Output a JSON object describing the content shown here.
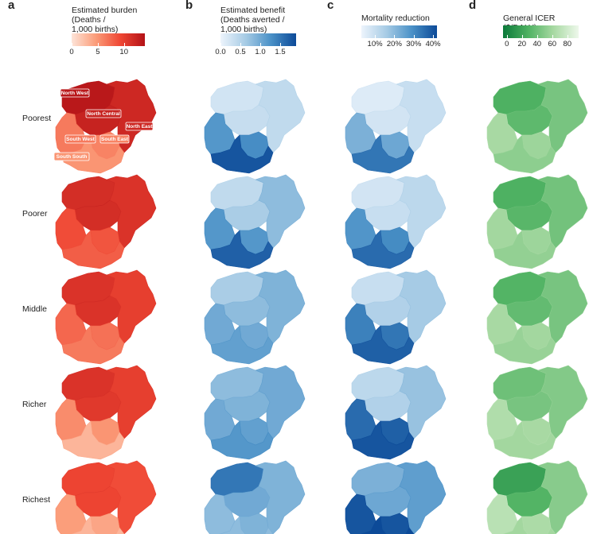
{
  "panels": [
    {
      "letter": "a",
      "legend_title": "Estimated burden\n(Deaths /\n1,000 births)",
      "ticks": [
        "0",
        "5",
        "10"
      ],
      "tick_values": [
        0,
        5,
        10
      ],
      "range": [
        0,
        14
      ],
      "colors": [
        "#fde4d8",
        "#fb9b78",
        "#ef4633",
        "#b31217"
      ]
    },
    {
      "letter": "b",
      "legend_title": "Estimated benefit\n(Deaths averted /\n1,000 births)",
      "ticks": [
        "0.0",
        "0.5",
        "1.0",
        "1.5"
      ],
      "tick_values": [
        0,
        0.5,
        1.0,
        1.5
      ],
      "range": [
        0,
        1.9
      ],
      "colors": [
        "#edf4fc",
        "#a6cbe5",
        "#4a91c7",
        "#0c4a98"
      ]
    },
    {
      "letter": "c",
      "legend_title": "Mortality reduction",
      "ticks": [
        "10%",
        "20%",
        "30%",
        "40%"
      ],
      "tick_values": [
        10,
        20,
        30,
        40
      ],
      "range": [
        3,
        42
      ],
      "colors": [
        "#edf4fc",
        "#a6cbe5",
        "#4a91c7",
        "#0c4a98"
      ]
    },
    {
      "letter": "d",
      "legend_title": "General ICER ($/DALY)",
      "ticks": [
        "0",
        "20",
        "40",
        "60",
        "80"
      ],
      "tick_values": [
        0,
        20,
        40,
        60,
        80
      ],
      "range": [
        -5,
        95
      ],
      "colors": [
        "#0b7a3a",
        "#4fb262",
        "#a7d9a2",
        "#eef8eb"
      ]
    }
  ],
  "rows": [
    "Poorest",
    "Poorer",
    "Middle",
    "Richer",
    "Richest"
  ],
  "region_labels": [
    "North West",
    "North Central",
    "North East",
    "South West",
    "South East",
    "South South"
  ],
  "map_values": [
    [
      [
        13.5,
        12.5,
        12.0,
        6.5,
        6.0,
        5.0
      ],
      [
        11.5,
        11.5,
        11.0,
        9.0,
        8.5,
        8.0
      ],
      [
        11.0,
        11.0,
        10.0,
        7.5,
        7.0,
        6.5
      ],
      [
        11.0,
        10.5,
        10.0,
        5.5,
        5.0,
        3.0
      ],
      [
        9.5,
        9.5,
        9.0,
        4.5,
        4.0,
        3.0
      ]
    ],
    [
      [
        0.25,
        0.35,
        0.4,
        1.2,
        1.3,
        1.8
      ],
      [
        0.4,
        0.6,
        0.8,
        1.2,
        1.2,
        1.7
      ],
      [
        0.6,
        0.8,
        0.9,
        1.0,
        1.0,
        1.1
      ],
      [
        0.8,
        0.9,
        1.0,
        1.0,
        1.1,
        1.2
      ],
      [
        1.5,
        1.0,
        0.9,
        0.8,
        0.9,
        0.8
      ]
    ],
    [
      [
        6,
        8,
        10,
        22,
        24,
        34
      ],
      [
        8,
        10,
        12,
        28,
        30,
        36
      ],
      [
        10,
        14,
        16,
        32,
        34,
        38
      ],
      [
        12,
        14,
        18,
        36,
        38,
        40
      ],
      [
        22,
        24,
        26,
        40,
        40,
        42
      ]
    ],
    [
      [
        28,
        34,
        44,
        62,
        58,
        52
      ],
      [
        28,
        32,
        42,
        60,
        58,
        54
      ],
      [
        30,
        36,
        44,
        62,
        60,
        56
      ],
      [
        40,
        44,
        48,
        66,
        62,
        60
      ],
      [
        18,
        30,
        50,
        70,
        64,
        60
      ]
    ]
  ]
}
